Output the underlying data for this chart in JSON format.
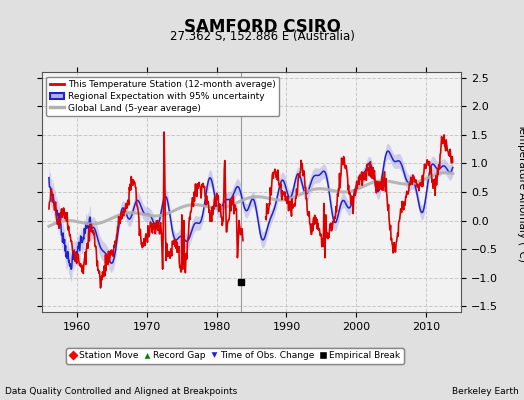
{
  "title": "SAMFORD CSIRO",
  "subtitle": "27.362 S, 152.886 E (Australia)",
  "ylabel": "Temperature Anomaly (°C)",
  "xlabel_left": "Data Quality Controlled and Aligned at Breakpoints",
  "xlabel_right": "Berkeley Earth",
  "ylim": [
    -1.6,
    2.6
  ],
  "xlim": [
    1955,
    2015
  ],
  "yticks": [
    -1.5,
    -1.0,
    -0.5,
    0.0,
    0.5,
    1.0,
    1.5,
    2.0,
    2.5
  ],
  "xticks": [
    1960,
    1970,
    1980,
    1990,
    2000,
    2010
  ],
  "bg_color": "#e0e0e0",
  "plot_bg_color": "#f2f2f2",
  "grid_color": "#c8c8c8",
  "vertical_line_x": 1983.5,
  "empirical_break_x": 1983.5,
  "empirical_break_y": -1.07,
  "red_line_color": "#dd0000",
  "blue_line_color": "#2222cc",
  "blue_fill_color": "#b0b0e8",
  "gray_line_color": "#b0b0b0",
  "legend1_entries": [
    "This Temperature Station (12-month average)",
    "Regional Expectation with 95% uncertainty",
    "Global Land (5-year average)"
  ]
}
